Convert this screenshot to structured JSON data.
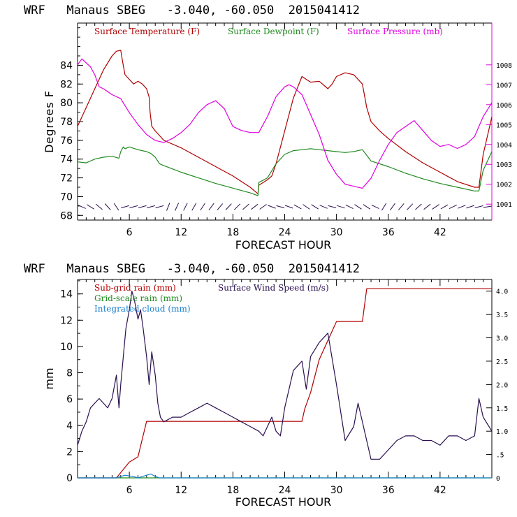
{
  "colors": {
    "temperature": "#b00000",
    "dewpoint": "#208a20",
    "pressure": "#e000e0",
    "wind_barb": "#2a1050",
    "subgrid_rain": "#b00000",
    "gridscale_rain": "#208a20",
    "integrated_cloud": "#1a80d0",
    "wind_speed": "#2a1050"
  },
  "chart_data": [
    {
      "type": "line",
      "title": "WRF   Manaus SBEG   -3.040, -60.050  2015041412",
      "xlabel": "FORECAST HOUR",
      "ylabel": "Degrees F",
      "xlim": [
        0,
        48
      ],
      "ylim": [
        67.5,
        88.5
      ],
      "x_ticks": [
        6,
        12,
        18,
        24,
        30,
        36,
        42
      ],
      "y_ticks": [
        68,
        70,
        72,
        74,
        76,
        78,
        80,
        82,
        84
      ],
      "y2lim": [
        1000.2,
        1010.1
      ],
      "y2_ticks": [
        1001,
        1002,
        1003,
        1004,
        1005,
        1006,
        1007,
        1008
      ],
      "series": [
        {
          "name": "Surface Temperature (F)",
          "axis": "left",
          "x": [
            0,
            1,
            2,
            3,
            4,
            4.5,
            5,
            5.2,
            5.5,
            6,
            6.5,
            7,
            7.5,
            8,
            8.3,
            8.4,
            8.6,
            9,
            9.5,
            10,
            12,
            14,
            16,
            18,
            20,
            20.9,
            21,
            22,
            22.5,
            23,
            24,
            25,
            26,
            26.5,
            27,
            28,
            29,
            29.5,
            30,
            31,
            32,
            33,
            33.5,
            34,
            34.5,
            35,
            36,
            38,
            40,
            42,
            44,
            46,
            46.5,
            47,
            48
          ],
          "values": [
            77.5,
            79.5,
            81.5,
            83.5,
            85.0,
            85.5,
            85.6,
            84.5,
            83.0,
            82.5,
            82.0,
            82.3,
            82.0,
            81.5,
            80.6,
            79.0,
            77.5,
            77.0,
            76.5,
            76.0,
            75.2,
            74.2,
            73.2,
            72.2,
            71.0,
            70.3,
            71.2,
            71.8,
            72.2,
            73.5,
            77.0,
            80.5,
            82.8,
            82.5,
            82.2,
            82.3,
            81.5,
            82.0,
            82.8,
            83.2,
            83.0,
            82.0,
            79.5,
            78.0,
            77.5,
            77.0,
            76.2,
            74.8,
            73.6,
            72.6,
            71.6,
            71.0,
            71.0,
            74.5,
            78.5
          ]
        },
        {
          "name": "Surface Dewpoint (F)",
          "axis": "left",
          "x": [
            0,
            1,
            2,
            3,
            4,
            4.8,
            5,
            5.3,
            5.5,
            6,
            7,
            8,
            8.5,
            9,
            9.5,
            10,
            12,
            14,
            16,
            18,
            20,
            20.9,
            21,
            22,
            23,
            24,
            25,
            26,
            27,
            28,
            29,
            30,
            31,
            32,
            32.5,
            33,
            33.5,
            34,
            36,
            38,
            40,
            42,
            44,
            46,
            46.5,
            47,
            48
          ],
          "values": [
            73.7,
            73.6,
            74.0,
            74.2,
            74.3,
            74.1,
            74.8,
            75.3,
            75.1,
            75.3,
            75.0,
            74.8,
            74.6,
            74.2,
            73.5,
            73.3,
            72.6,
            72.0,
            71.4,
            70.9,
            70.4,
            70.1,
            71.5,
            72.0,
            73.5,
            74.5,
            74.9,
            75.0,
            75.1,
            75.0,
            74.9,
            74.8,
            74.7,
            74.8,
            74.9,
            75.0,
            74.4,
            73.8,
            73.2,
            72.5,
            71.9,
            71.4,
            71.0,
            70.6,
            70.6,
            72.8,
            74.8
          ]
        },
        {
          "name": "Surface Pressure (mb)",
          "axis": "right",
          "x": [
            0,
            0.5,
            1,
            1.5,
            2,
            2.5,
            3,
            4,
            5,
            6,
            7,
            8,
            9,
            10,
            11,
            12,
            13,
            14,
            15,
            16,
            17,
            18,
            19,
            20,
            21,
            22,
            23,
            24,
            24.5,
            25,
            26,
            27,
            28,
            29,
            30,
            31,
            32,
            33,
            34,
            35,
            36,
            37,
            38,
            39,
            40,
            41,
            42,
            43,
            44,
            45,
            46,
            47,
            48
          ],
          "values": [
            1008.0,
            1008.3,
            1008.1,
            1007.9,
            1007.5,
            1006.9,
            1006.8,
            1006.5,
            1006.3,
            1005.6,
            1005.0,
            1004.5,
            1004.2,
            1004.1,
            1004.3,
            1004.6,
            1005.0,
            1005.6,
            1006.0,
            1006.2,
            1005.8,
            1004.9,
            1004.7,
            1004.6,
            1004.6,
            1005.4,
            1006.4,
            1006.9,
            1007.0,
            1006.9,
            1006.5,
            1005.5,
            1004.5,
            1003.2,
            1002.5,
            1002.0,
            1001.9,
            1001.8,
            1002.3,
            1003.2,
            1004.0,
            1004.6,
            1004.9,
            1005.2,
            1004.7,
            1004.2,
            1003.9,
            1004.0,
            1003.8,
            1004.0,
            1004.4,
            1005.4,
            1006.1
          ]
        }
      ]
    },
    {
      "type": "line",
      "title": "WRF   Manaus SBEG   -3.040, -60.050  2015041412",
      "xlabel": "FORECAST HOUR",
      "ylabel": "mm",
      "xlim": [
        0,
        48
      ],
      "ylim": [
        0,
        15.1
      ],
      "x_ticks": [
        6,
        12,
        18,
        24,
        30,
        36,
        42
      ],
      "y_ticks": [
        0,
        2,
        4,
        6,
        8,
        10,
        12,
        14
      ],
      "y2lim": [
        0,
        4.25
      ],
      "y2_ticks": [
        0,
        0.5,
        1.0,
        1.5,
        2.0,
        2.5,
        3.0,
        3.5,
        4.0
      ],
      "y2_tick_labels": [
        "0",
        ".5",
        "1.0",
        "1.5",
        "2.0",
        "2.5",
        "3.0",
        "3.5",
        "4.0"
      ],
      "series": [
        {
          "name": "Sub-grid rain (mm)",
          "axis": "left",
          "x": [
            0,
            4.5,
            5,
            6,
            7,
            8,
            9,
            26,
            26.3,
            27,
            28,
            30,
            33,
            33.5,
            48
          ],
          "values": [
            0,
            0,
            0.4,
            1.2,
            1.6,
            4.3,
            4.3,
            4.3,
            5.2,
            6.5,
            9.0,
            11.9,
            11.9,
            14.4,
            14.4
          ]
        },
        {
          "name": "Grid-scale rain (mm)",
          "axis": "left",
          "x": [
            0,
            48
          ],
          "values": [
            0,
            0
          ]
        },
        {
          "name": "Integrated cloud (mm)",
          "axis": "left",
          "x": [
            0,
            4.5,
            5.5,
            6.5,
            7,
            8,
            8.5,
            9,
            9.5,
            48
          ],
          "values": [
            0,
            0,
            0.2,
            0.1,
            0,
            0.2,
            0.3,
            0.1,
            0,
            0
          ]
        },
        {
          "name": "Surface Wind Speed (m/s)",
          "axis": "right",
          "x": [
            0,
            0.5,
            1,
            1.5,
            2,
            2.5,
            3,
            3.5,
            4,
            4.5,
            4.8,
            5,
            5.3,
            5.6,
            6,
            6.3,
            6.6,
            7,
            7.3,
            7.6,
            8,
            8.3,
            8.6,
            9,
            9.3,
            9.6,
            10,
            11,
            12,
            13,
            14,
            15,
            16,
            17,
            18,
            19,
            20,
            21,
            21.5,
            22,
            22.5,
            23,
            23.5,
            24,
            25,
            26,
            26.5,
            27,
            28,
            29,
            30,
            31,
            32,
            32.5,
            33,
            34,
            35,
            36,
            37,
            38,
            39,
            40,
            41,
            42,
            43,
            44,
            45,
            46,
            46.5,
            47,
            48
          ],
          "values": [
            0.7,
            1.0,
            1.2,
            1.5,
            1.6,
            1.7,
            1.6,
            1.5,
            1.7,
            2.2,
            1.5,
            2.0,
            2.6,
            3.2,
            3.6,
            4.0,
            3.8,
            3.4,
            3.6,
            3.2,
            2.6,
            2.0,
            2.7,
            2.2,
            1.6,
            1.3,
            1.2,
            1.3,
            1.3,
            1.4,
            1.5,
            1.6,
            1.5,
            1.4,
            1.3,
            1.2,
            1.1,
            1.0,
            0.9,
            1.1,
            1.3,
            1.0,
            0.9,
            1.5,
            2.3,
            2.5,
            1.9,
            2.6,
            2.9,
            3.1,
            2.0,
            0.8,
            1.1,
            1.6,
            1.2,
            0.4,
            0.4,
            0.6,
            0.8,
            0.9,
            0.9,
            0.8,
            0.8,
            0.7,
            0.9,
            0.9,
            0.8,
            0.9,
            1.7,
            1.3,
            1.0
          ]
        }
      ]
    }
  ]
}
